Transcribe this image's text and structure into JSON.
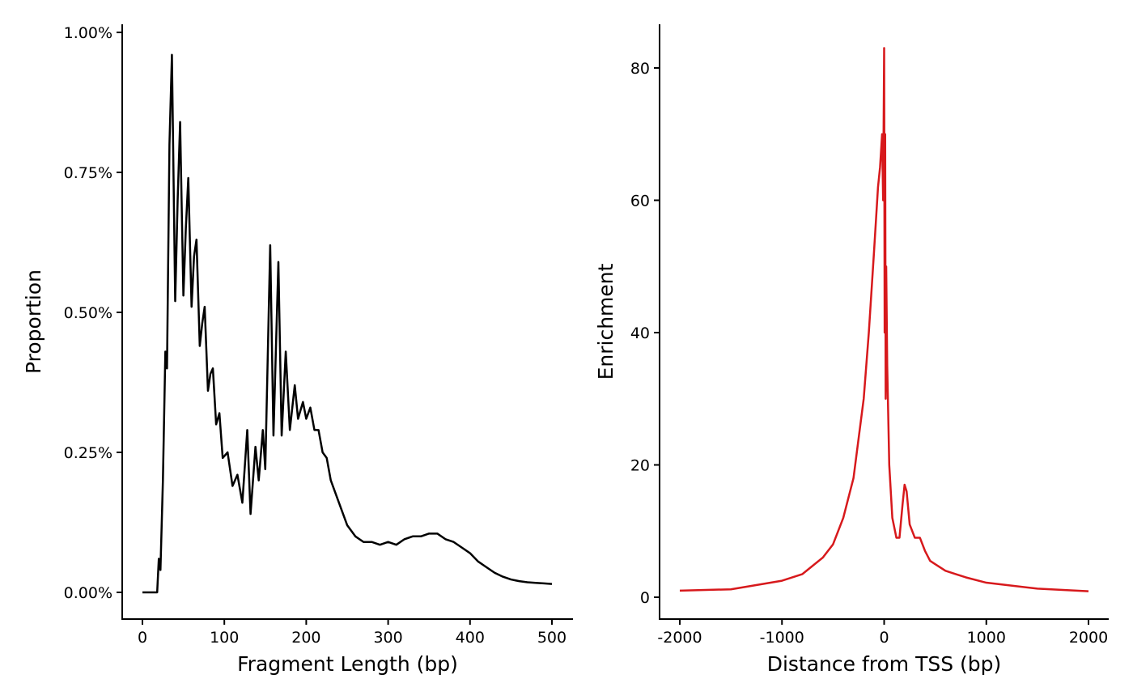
{
  "chart_data": [
    {
      "type": "line",
      "x_label": "Fragment Length (bp)",
      "y_label": "Proportion",
      "color": "#000000",
      "x": [
        0,
        18,
        20,
        22,
        25,
        28,
        30,
        33,
        36,
        40,
        43,
        46,
        50,
        53,
        56,
        60,
        63,
        66,
        70,
        73,
        76,
        80,
        83,
        86,
        90,
        94,
        98,
        104,
        110,
        116,
        122,
        128,
        132,
        138,
        142,
        147,
        150,
        156,
        160,
        166,
        170,
        175,
        180,
        186,
        190,
        196,
        200,
        205,
        210,
        215,
        220,
        225,
        230,
        240,
        250,
        260,
        270,
        280,
        290,
        300,
        310,
        320,
        330,
        340,
        350,
        360,
        370,
        380,
        390,
        400,
        410,
        420,
        430,
        440,
        450,
        460,
        470,
        480,
        490,
        500
      ],
      "values": [
        0,
        0,
        0.06,
        0.04,
        0.2,
        0.43,
        0.4,
        0.8,
        0.96,
        0.52,
        0.7,
        0.84,
        0.53,
        0.65,
        0.74,
        0.51,
        0.6,
        0.63,
        0.44,
        0.48,
        0.51,
        0.36,
        0.39,
        0.4,
        0.3,
        0.32,
        0.24,
        0.25,
        0.19,
        0.21,
        0.16,
        0.29,
        0.14,
        0.26,
        0.2,
        0.29,
        0.22,
        0.62,
        0.28,
        0.59,
        0.28,
        0.43,
        0.29,
        0.37,
        0.31,
        0.34,
        0.31,
        0.33,
        0.29,
        0.29,
        0.25,
        0.24,
        0.2,
        0.16,
        0.12,
        0.1,
        0.09,
        0.09,
        0.085,
        0.09,
        0.085,
        0.095,
        0.1,
        0.1,
        0.105,
        0.105,
        0.095,
        0.09,
        0.08,
        0.07,
        0.055,
        0.045,
        0.035,
        0.028,
        0.023,
        0.02,
        0.018,
        0.017,
        0.016,
        0.015
      ],
      "xlim": [
        -24.7,
        525.7
      ],
      "xticks": [
        0,
        100,
        200,
        300,
        400,
        500
      ],
      "ylim": [
        -0.0477,
        1.0145
      ],
      "yticks": [
        {
          "value": 0,
          "label": "0.00%"
        },
        {
          "value": 0.25,
          "label": "0.25%"
        },
        {
          "value": 0.5,
          "label": "0.50%"
        },
        {
          "value": 0.75,
          "label": "0.75%"
        },
        {
          "value": 1,
          "label": "1.00%"
        }
      ]
    },
    {
      "type": "line",
      "x_label": "Distance from TSS (bp)",
      "y_label": "Enrichment",
      "color": "#d7191c",
      "x": [
        -2000,
        -1500,
        -1000,
        -800,
        -600,
        -500,
        -400,
        -300,
        -200,
        -150,
        -100,
        -60,
        -40,
        -20,
        -10,
        0,
        5,
        10,
        15,
        20,
        30,
        50,
        80,
        120,
        150,
        180,
        200,
        220,
        250,
        300,
        350,
        400,
        450,
        500,
        600,
        700,
        800,
        1000,
        1500,
        2000
      ],
      "values": [
        1,
        1.2,
        2.5,
        3.5,
        6,
        8,
        12,
        18,
        30,
        40,
        52,
        62,
        65,
        70,
        60,
        83,
        40,
        70,
        30,
        50,
        35,
        20,
        12,
        9,
        9,
        14,
        17,
        16,
        11,
        9,
        9,
        7,
        5.5,
        5,
        4,
        3.5,
        3,
        2.2,
        1.3,
        0.9
      ],
      "xlim": [
        -2198,
        2198
      ],
      "xticks": [
        -2000,
        -1000,
        0,
        1000,
        2000
      ],
      "ylim": [
        -3.3,
        86.6
      ],
      "yticks": [
        0,
        20,
        40,
        60,
        80
      ]
    }
  ]
}
